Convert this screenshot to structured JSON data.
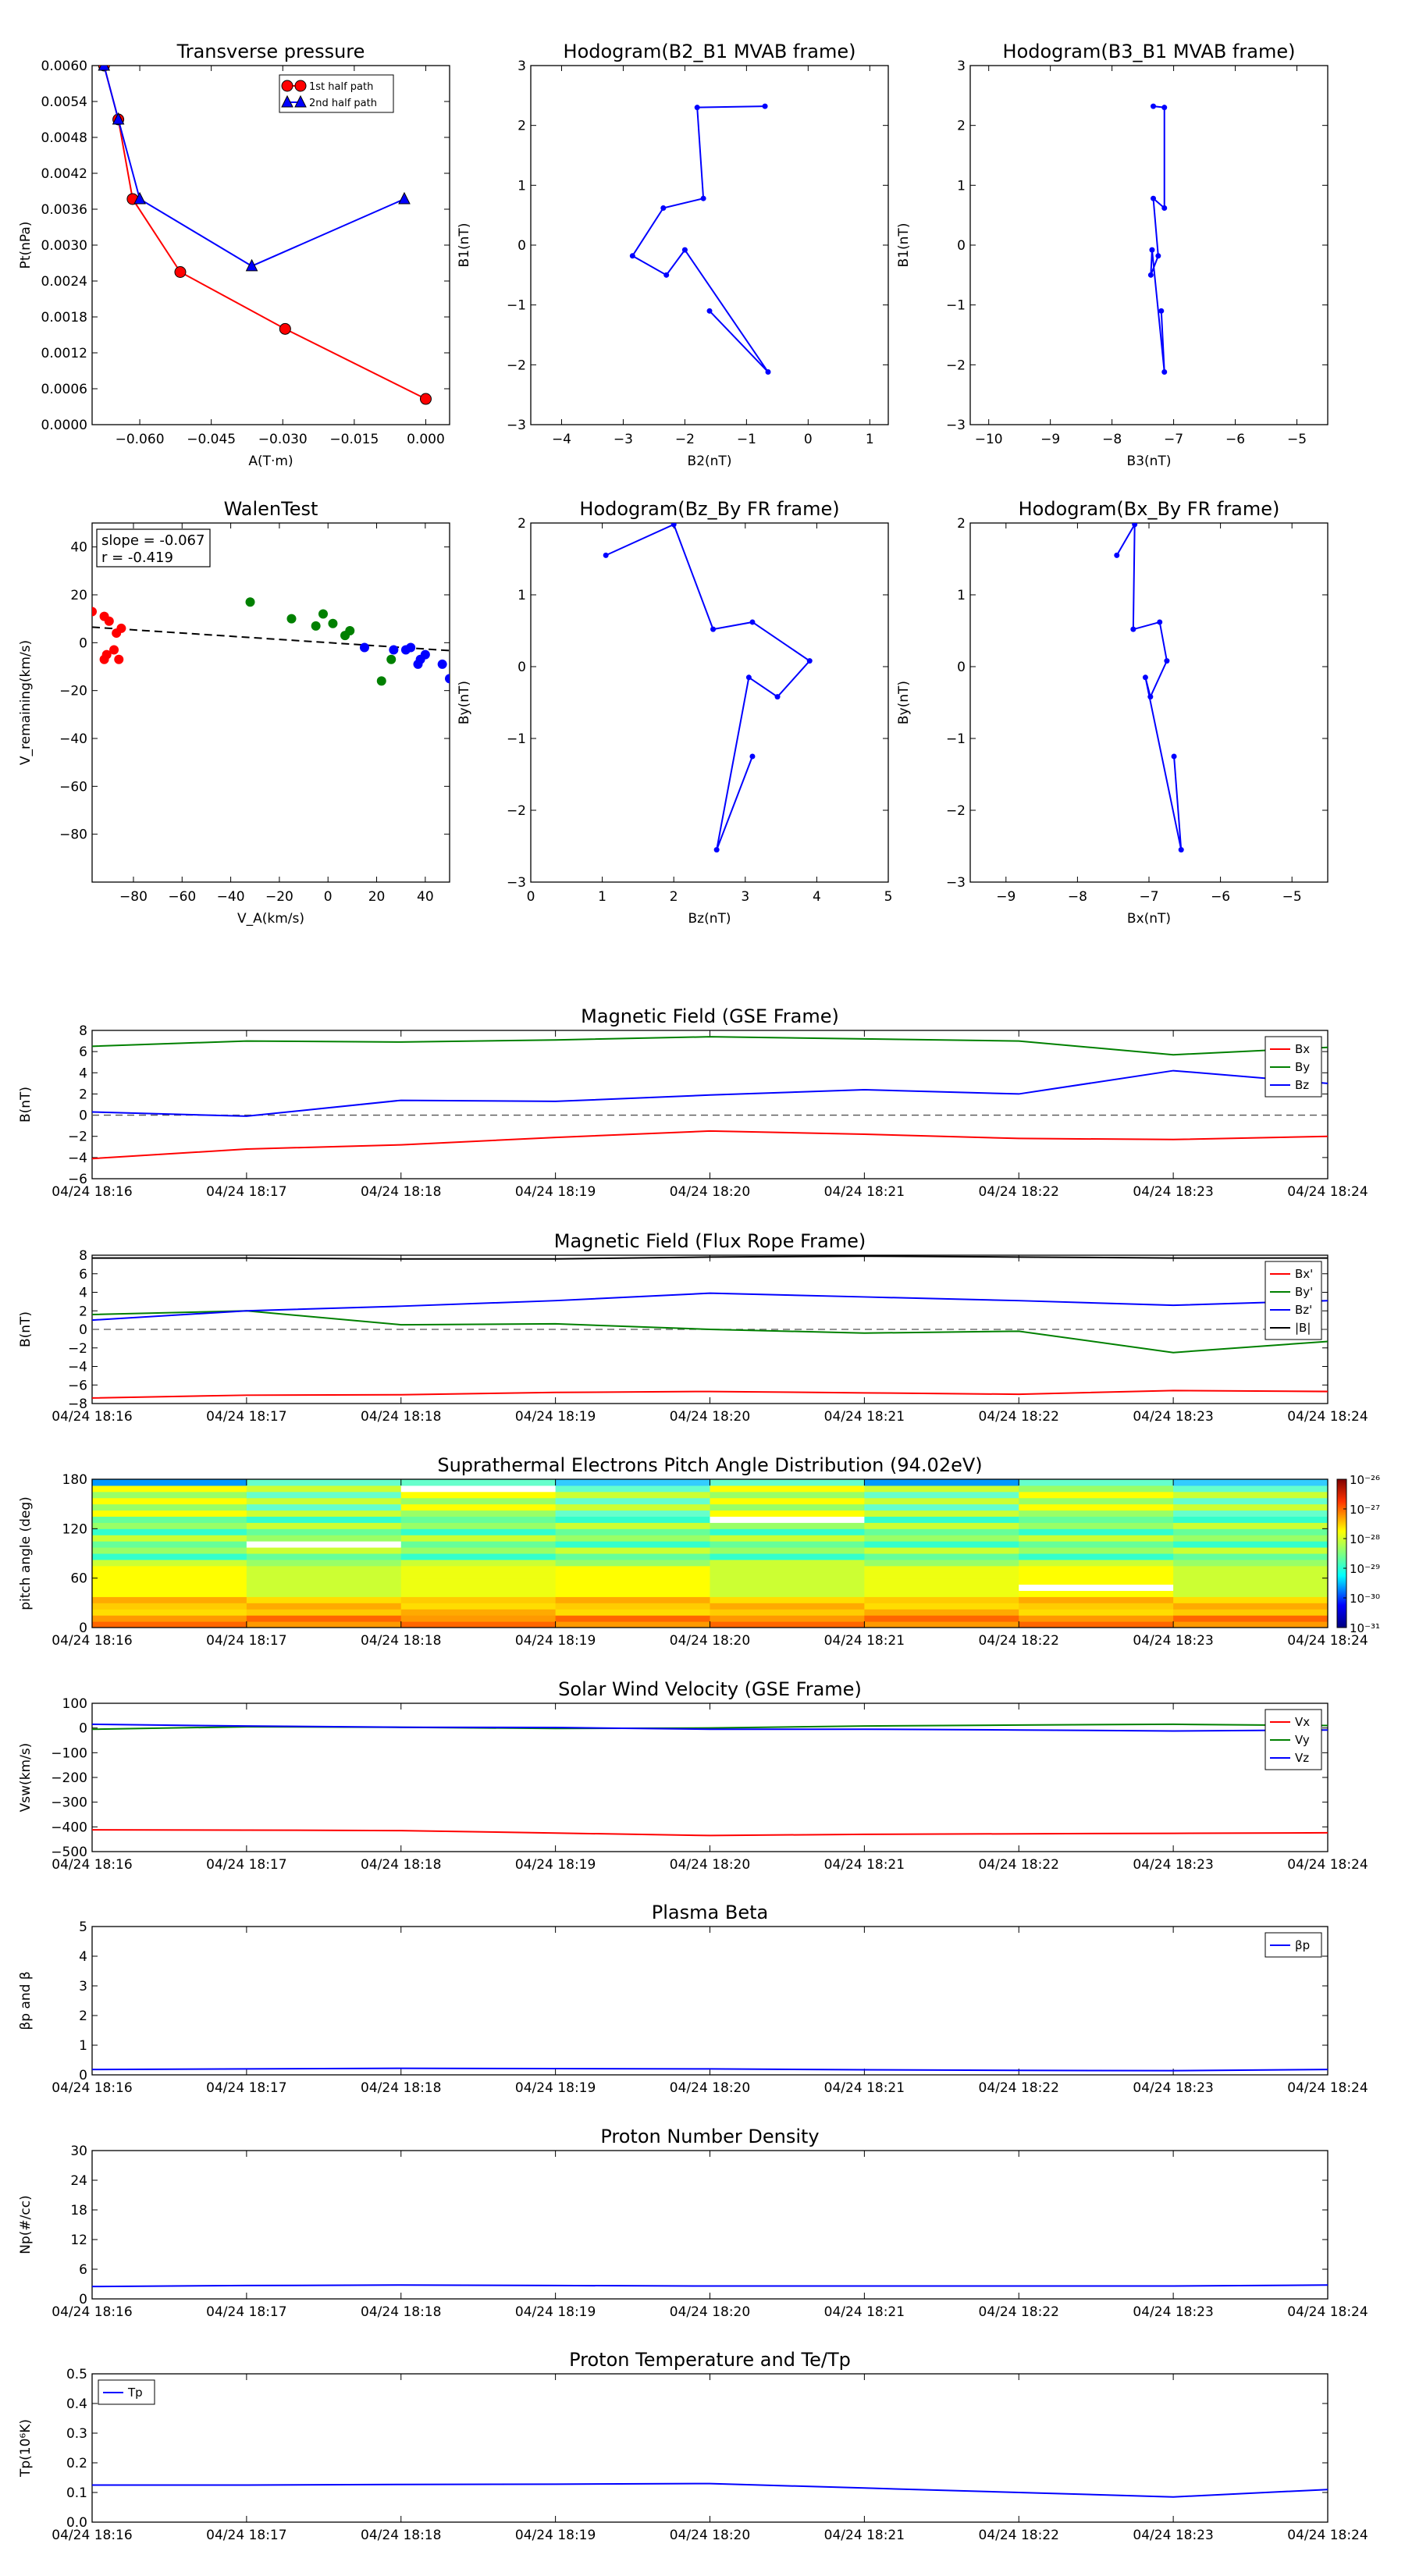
{
  "times": [
    "04/24 18:16",
    "04/24 18:17",
    "04/24 18:18",
    "04/24 18:19",
    "04/24 18:20",
    "04/24 18:21",
    "04/24 18:22",
    "04/24 18:23",
    "04/24 18:24"
  ],
  "colors": {
    "red": "#ff0000",
    "green": "#008000",
    "blue": "#0000ff",
    "black": "#000000",
    "dashed": "#555555"
  },
  "chart_data": [
    {
      "type": "line",
      "title": "Transverse pressure",
      "xlabel": "A(T·m)",
      "ylabel": "Pt(nPa)",
      "xlim": [
        -0.07,
        0.005
      ],
      "ylim": [
        0,
        0.006
      ],
      "xticks": [
        -0.06,
        -0.045,
        -0.03,
        -0.015,
        0.0
      ],
      "xtick_labels": [
        "−0.060",
        "−0.045",
        "−0.030",
        "−0.015",
        "0.000"
      ],
      "yticks": [
        0.0,
        0.0006,
        0.0012,
        0.0018,
        0.0024,
        0.003,
        0.0036,
        0.0042,
        0.0048,
        0.0054,
        0.006
      ],
      "ytick_labels": [
        "0.0000",
        "0.0006",
        "0.0012",
        "0.0018",
        "0.0024",
        "0.0030",
        "0.0036",
        "0.0042",
        "0.0048",
        "0.0054",
        "0.0060"
      ],
      "legend": "top-center",
      "series": [
        {
          "name": "1st half path",
          "color": "red",
          "marker": "circle",
          "x": [
            -0.0675,
            -0.0645,
            -0.0615,
            -0.0515,
            -0.0295,
            0.0
          ],
          "y": [
            0.006,
            0.0051,
            0.00377,
            0.00255,
            0.0016,
            0.00043
          ]
        },
        {
          "name": "2nd half path",
          "color": "blue",
          "marker": "triangle",
          "x": [
            -0.0675,
            -0.0645,
            -0.06,
            -0.0365,
            -0.0045
          ],
          "y": [
            0.006,
            0.0051,
            0.00377,
            0.00265,
            0.00377
          ]
        }
      ]
    },
    {
      "type": "line",
      "title": "Hodogram(B2_B1 MVAB frame)",
      "xlabel": "B2(nT)",
      "ylabel": "B1(nT)",
      "xlim": [
        -4.5,
        1.3
      ],
      "ylim": [
        -3,
        3
      ],
      "xticks": [
        -4,
        -3,
        -2,
        -1,
        0,
        1
      ],
      "xtick_labels": [
        "−4",
        "−3",
        "−2",
        "−1",
        "0",
        "1"
      ],
      "yticks": [
        -3,
        -2,
        -1,
        0,
        1,
        2,
        3
      ],
      "ytick_labels": [
        "−3",
        "−2",
        "−1",
        "0",
        "1",
        "2",
        "3"
      ],
      "series": [
        {
          "color": "blue",
          "x": [
            -0.7,
            -1.8,
            -1.7,
            -2.35,
            -2.85,
            -2.3,
            -2.0,
            -0.65,
            -1.6
          ],
          "y": [
            2.32,
            2.3,
            0.78,
            0.62,
            -0.18,
            -0.5,
            -0.08,
            -2.12,
            -1.1
          ]
        }
      ]
    },
    {
      "type": "line",
      "title": "Hodogram(B3_B1 MVAB frame)",
      "xlabel": "B3(nT)",
      "ylabel": "B1(nT)",
      "xlim": [
        -10.3,
        -4.5
      ],
      "ylim": [
        -3,
        3
      ],
      "xticks": [
        -10,
        -9,
        -8,
        -7,
        -6,
        -5
      ],
      "xtick_labels": [
        "−10",
        "−9",
        "−8",
        "−7",
        "−6",
        "−5"
      ],
      "yticks": [
        -3,
        -2,
        -1,
        0,
        1,
        2,
        3
      ],
      "ytick_labels": [
        "−3",
        "−2",
        "−1",
        "0",
        "1",
        "2",
        "3"
      ],
      "series": [
        {
          "color": "blue",
          "x": [
            -7.33,
            -7.15,
            -7.15,
            -7.33,
            -7.25,
            -7.37,
            -7.35,
            -7.15,
            -7.2
          ],
          "y": [
            2.32,
            2.3,
            0.62,
            0.78,
            -0.18,
            -0.5,
            -0.08,
            -2.12,
            -1.1
          ]
        }
      ]
    },
    {
      "type": "scatter",
      "title": "WalenTest",
      "xlabel": "V_A(km/s)",
      "ylabel": "V_remaining(km/s)",
      "xlim": [
        -97,
        50
      ],
      "ylim": [
        -100,
        50
      ],
      "xticks": [
        -80,
        -60,
        -40,
        -20,
        0,
        20,
        40
      ],
      "xtick_labels": [
        "−80",
        "−60",
        "−40",
        "−20",
        "0",
        "20",
        "40"
      ],
      "yticks": [
        -80,
        -60,
        -40,
        -20,
        0,
        20,
        40
      ],
      "ytick_labels": [
        "−80",
        "−60",
        "−40",
        "−20",
        "0",
        "20",
        "40"
      ],
      "annotation": [
        "slope = -0.067",
        "r = -0.419"
      ],
      "fit_line": {
        "x": [
          -97,
          50
        ],
        "y": [
          6.5,
          -3.3
        ]
      },
      "groups": [
        {
          "color": "red",
          "x": [
            -97,
            -92,
            -90,
            -87,
            -85,
            -88,
            -92,
            -86,
            -91
          ],
          "y": [
            13,
            11,
            9,
            4,
            6,
            -3,
            -7,
            -7,
            -5
          ]
        },
        {
          "color": "green",
          "x": [
            -32,
            -15,
            -5,
            -2,
            2,
            7,
            9,
            22,
            26
          ],
          "y": [
            17,
            10,
            7,
            12,
            8,
            3,
            5,
            -16,
            -7
          ]
        },
        {
          "color": "blue",
          "x": [
            15,
            27,
            32,
            34,
            37,
            38,
            40,
            47,
            50
          ],
          "y": [
            -2,
            -3,
            -3,
            -2,
            -9,
            -7,
            -5,
            -9,
            -15
          ]
        }
      ]
    },
    {
      "type": "line",
      "title": "Hodogram(Bz_By FR frame)",
      "xlabel": "Bz(nT)",
      "ylabel": "By(nT)",
      "xlim": [
        0,
        5
      ],
      "ylim": [
        -3,
        2
      ],
      "xticks": [
        0,
        1,
        2,
        3,
        4,
        5
      ],
      "xtick_labels": [
        "0",
        "1",
        "2",
        "3",
        "4",
        "5"
      ],
      "yticks": [
        -3,
        -2,
        -1,
        0,
        1,
        2
      ],
      "ytick_labels": [
        "−3",
        "−2",
        "−1",
        "0",
        "1",
        "2"
      ],
      "series": [
        {
          "color": "blue",
          "x": [
            1.05,
            2.0,
            2.55,
            3.1,
            3.9,
            3.45,
            3.05,
            2.6,
            3.1
          ],
          "y": [
            1.55,
            1.98,
            0.52,
            0.62,
            0.08,
            -0.42,
            -0.15,
            -2.55,
            -1.25
          ]
        }
      ]
    },
    {
      "type": "line",
      "title": "Hodogram(Bx_By FR frame)",
      "xlabel": "Bx(nT)",
      "ylabel": "By(nT)",
      "xlim": [
        -9.5,
        -4.5
      ],
      "ylim": [
        -3,
        2
      ],
      "xticks": [
        -9,
        -8,
        -7,
        -6,
        -5
      ],
      "xtick_labels": [
        "−9",
        "−8",
        "−7",
        "−6",
        "−5"
      ],
      "yticks": [
        -3,
        -2,
        -1,
        0,
        1,
        2
      ],
      "ytick_labels": [
        "−3",
        "−2",
        "−1",
        "0",
        "1",
        "2"
      ],
      "series": [
        {
          "color": "blue",
          "x": [
            -7.45,
            -7.2,
            -7.22,
            -6.85,
            -6.75,
            -6.98,
            -7.05,
            -6.55,
            -6.65
          ],
          "y": [
            1.55,
            1.98,
            0.52,
            0.62,
            0.08,
            -0.42,
            -0.15,
            -2.55,
            -1.25
          ]
        }
      ]
    },
    {
      "type": "line",
      "title": "Magnetic Field (GSE Frame)",
      "ylabel": "B(nT)",
      "ylim": [
        -6,
        8
      ],
      "yticks": [
        -6,
        -4,
        -2,
        0,
        2,
        4,
        6,
        8
      ],
      "ytick_labels": [
        "−6",
        "−4",
        "−2",
        "0",
        "2",
        "4",
        "6",
        "8"
      ],
      "zero_line": true,
      "legend": "top-right",
      "series": [
        {
          "name": "Bx",
          "color": "red",
          "values": [
            -4.1,
            -3.2,
            -2.8,
            -2.1,
            -1.5,
            -1.8,
            -2.2,
            -2.3,
            -2.0
          ]
        },
        {
          "name": "By",
          "color": "green",
          "values": [
            6.5,
            7.0,
            6.9,
            7.1,
            7.4,
            7.2,
            7.0,
            5.7,
            6.4
          ]
        },
        {
          "name": "Bz",
          "color": "blue",
          "values": [
            0.3,
            -0.1,
            1.4,
            1.3,
            1.9,
            2.4,
            2.0,
            4.2,
            3.0
          ]
        }
      ]
    },
    {
      "type": "line",
      "title": "Magnetic Field (Flux Rope Frame)",
      "ylabel": "B(nT)",
      "ylim": [
        -8,
        8
      ],
      "yticks": [
        -8,
        -6,
        -4,
        -2,
        0,
        2,
        4,
        6,
        8
      ],
      "ytick_labels": [
        "−8",
        "−6",
        "−4",
        "−2",
        "0",
        "2",
        "4",
        "6",
        "8"
      ],
      "zero_line": true,
      "legend": "top-right",
      "series": [
        {
          "name": "Bx'",
          "color": "red",
          "values": [
            -7.4,
            -7.1,
            -7.05,
            -6.8,
            -6.7,
            -6.85,
            -7.0,
            -6.6,
            -6.7
          ]
        },
        {
          "name": "By'",
          "color": "green",
          "values": [
            1.6,
            2.0,
            0.5,
            0.6,
            0.0,
            -0.4,
            -0.2,
            -2.5,
            -1.3
          ]
        },
        {
          "name": "Bz'",
          "color": "blue",
          "values": [
            1.0,
            2.0,
            2.5,
            3.1,
            3.9,
            3.5,
            3.1,
            2.6,
            3.1
          ]
        },
        {
          "name": "|B|",
          "color": "black",
          "values": [
            7.7,
            7.7,
            7.6,
            7.6,
            7.8,
            7.9,
            7.8,
            7.7,
            7.7
          ]
        }
      ]
    },
    {
      "type": "heatmap",
      "title": "Suprathermal Electrons Pitch Angle Distribution (94.02eV)",
      "ylabel": "pitch angle (deg)",
      "ylim": [
        0,
        180
      ],
      "yticks": [
        0,
        60,
        120,
        180
      ],
      "ytick_labels": [
        "0",
        "60",
        "120",
        "180"
      ],
      "colorbar": {
        "labels": [
          "10⁻²⁶",
          "10⁻²⁷",
          "10⁻²⁸",
          "10⁻²⁹",
          "10⁻³⁰",
          "10⁻³¹"
        ]
      }
    },
    {
      "type": "line",
      "title": "Solar Wind Velocity (GSE Frame)",
      "ylabel": "Vsw(km/s)",
      "ylim": [
        -500,
        100
      ],
      "yticks": [
        -500,
        -400,
        -300,
        -200,
        -100,
        0,
        100
      ],
      "ytick_labels": [
        "−500",
        "−400",
        "−300",
        "−200",
        "−100",
        "0",
        "100"
      ],
      "legend": "top-right",
      "series": [
        {
          "name": "Vx",
          "color": "red",
          "values": [
            -412,
            -413,
            -415,
            -425,
            -435,
            -430,
            -428,
            -426,
            -424
          ]
        },
        {
          "name": "Vy",
          "color": "green",
          "values": [
            -5,
            5,
            3,
            -2,
            0,
            8,
            12,
            15,
            10
          ]
        },
        {
          "name": "Vz",
          "color": "blue",
          "values": [
            15,
            8,
            3,
            2,
            -5,
            -5,
            -8,
            -12,
            -8
          ]
        }
      ]
    },
    {
      "type": "line",
      "title": "Plasma Beta",
      "ylabel": "βp and β",
      "ylim": [
        0,
        5
      ],
      "yticks": [
        0,
        1,
        2,
        3,
        4,
        5
      ],
      "ytick_labels": [
        "0",
        "1",
        "2",
        "3",
        "4",
        "5"
      ],
      "legend": "top-right",
      "series": [
        {
          "name": "βp",
          "color": "blue",
          "values": [
            0.18,
            0.2,
            0.22,
            0.21,
            0.2,
            0.17,
            0.15,
            0.14,
            0.18
          ]
        }
      ]
    },
    {
      "type": "line",
      "title": "Proton Number Density",
      "ylabel": "Np(#/cc)",
      "ylim": [
        0,
        30
      ],
      "yticks": [
        0,
        6,
        12,
        18,
        24,
        30
      ],
      "ytick_labels": [
        "0",
        "6",
        "12",
        "18",
        "24",
        "30"
      ],
      "series": [
        {
          "color": "blue",
          "values": [
            2.5,
            2.7,
            2.8,
            2.7,
            2.6,
            2.6,
            2.6,
            2.6,
            2.8
          ]
        }
      ]
    },
    {
      "type": "line",
      "title": "Proton Temperature and Te/Tp",
      "ylabel": "Tp(10⁶K)",
      "ylim": [
        0,
        0.5
      ],
      "yticks": [
        0,
        0.1,
        0.2,
        0.3,
        0.4,
        0.5
      ],
      "ytick_labels": [
        "0.0",
        "0.1",
        "0.2",
        "0.3",
        "0.4",
        "0.5"
      ],
      "legend": "top-left",
      "series": [
        {
          "name": "Tp",
          "color": "blue",
          "values": [
            0.125,
            0.125,
            0.127,
            0.128,
            0.13,
            0.115,
            0.1,
            0.085,
            0.11
          ]
        }
      ]
    }
  ]
}
